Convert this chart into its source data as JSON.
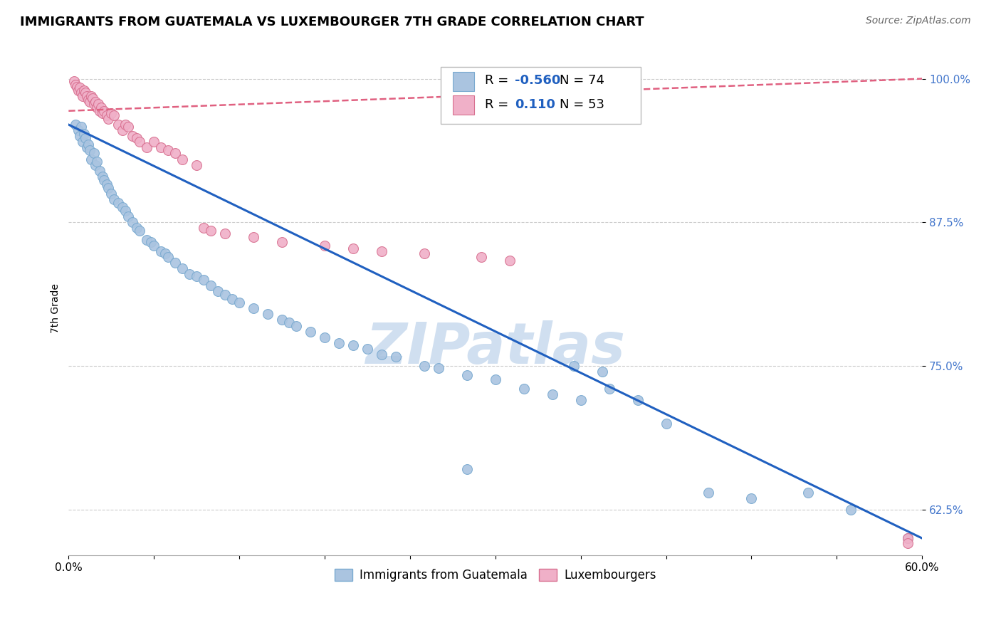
{
  "title": "IMMIGRANTS FROM GUATEMALA VS LUXEMBOURGER 7TH GRADE CORRELATION CHART",
  "source": "Source: ZipAtlas.com",
  "ylabel": "7th Grade",
  "xlim": [
    0.0,
    0.6
  ],
  "ylim": [
    0.585,
    1.015
  ],
  "yticks": [
    1.0,
    0.875,
    0.75,
    0.625
  ],
  "ytick_labels": [
    "100.0%",
    "87.5%",
    "75.0%",
    "62.5%"
  ],
  "xtick_positions": [
    0.0,
    0.06,
    0.12,
    0.18,
    0.24,
    0.3,
    0.36,
    0.42,
    0.48,
    0.54,
    0.6
  ],
  "xtick_labels": [
    "0.0%",
    "",
    "",
    "",
    "",
    "",
    "",
    "",
    "",
    "",
    "60.0%"
  ],
  "blue_R": -0.56,
  "blue_N": 74,
  "pink_R": 0.11,
  "pink_N": 53,
  "blue_color": "#aac4e0",
  "blue_edge": "#7aaad0",
  "pink_color": "#f0b0c8",
  "pink_edge": "#d87090",
  "blue_line_color": "#2060c0",
  "pink_line_color": "#e06080",
  "watermark": "ZIPatlas",
  "watermark_color": "#d0dff0",
  "blue_scatter_x": [
    0.005,
    0.007,
    0.008,
    0.009,
    0.01,
    0.011,
    0.012,
    0.013,
    0.014,
    0.015,
    0.016,
    0.018,
    0.019,
    0.02,
    0.022,
    0.024,
    0.025,
    0.027,
    0.028,
    0.03,
    0.032,
    0.035,
    0.038,
    0.04,
    0.042,
    0.045,
    0.048,
    0.05,
    0.055,
    0.058,
    0.06,
    0.065,
    0.068,
    0.07,
    0.075,
    0.08,
    0.085,
    0.09,
    0.095,
    0.1,
    0.105,
    0.11,
    0.115,
    0.12,
    0.13,
    0.14,
    0.15,
    0.155,
    0.16,
    0.17,
    0.18,
    0.19,
    0.2,
    0.21,
    0.22,
    0.23,
    0.25,
    0.26,
    0.28,
    0.3,
    0.32,
    0.34,
    0.355,
    0.36,
    0.375,
    0.38,
    0.4,
    0.42,
    0.45,
    0.48,
    0.52,
    0.55,
    0.59,
    0.28
  ],
  "blue_scatter_y": [
    0.96,
    0.955,
    0.95,
    0.958,
    0.945,
    0.952,
    0.948,
    0.94,
    0.943,
    0.938,
    0.93,
    0.935,
    0.925,
    0.928,
    0.92,
    0.915,
    0.912,
    0.908,
    0.905,
    0.9,
    0.895,
    0.892,
    0.888,
    0.885,
    0.88,
    0.875,
    0.87,
    0.868,
    0.86,
    0.858,
    0.855,
    0.85,
    0.848,
    0.845,
    0.84,
    0.835,
    0.83,
    0.828,
    0.825,
    0.82,
    0.815,
    0.812,
    0.808,
    0.805,
    0.8,
    0.795,
    0.79,
    0.788,
    0.785,
    0.78,
    0.775,
    0.77,
    0.768,
    0.765,
    0.76,
    0.758,
    0.75,
    0.748,
    0.742,
    0.738,
    0.73,
    0.725,
    0.75,
    0.72,
    0.745,
    0.73,
    0.72,
    0.7,
    0.64,
    0.635,
    0.64,
    0.625,
    0.6,
    0.66
  ],
  "blue_line_x": [
    0.0,
    0.6
  ],
  "blue_line_y": [
    0.96,
    0.6
  ],
  "pink_scatter_x": [
    0.004,
    0.005,
    0.006,
    0.007,
    0.008,
    0.009,
    0.01,
    0.011,
    0.012,
    0.013,
    0.014,
    0.015,
    0.016,
    0.017,
    0.018,
    0.019,
    0.02,
    0.021,
    0.022,
    0.023,
    0.024,
    0.025,
    0.027,
    0.028,
    0.03,
    0.032,
    0.035,
    0.038,
    0.04,
    0.042,
    0.045,
    0.048,
    0.05,
    0.055,
    0.06,
    0.065,
    0.07,
    0.075,
    0.08,
    0.09,
    0.095,
    0.1,
    0.11,
    0.13,
    0.15,
    0.18,
    0.2,
    0.22,
    0.25,
    0.29,
    0.31,
    0.59,
    0.59
  ],
  "pink_scatter_y": [
    0.998,
    0.995,
    0.993,
    0.99,
    0.992,
    0.988,
    0.985,
    0.99,
    0.988,
    0.985,
    0.982,
    0.98,
    0.985,
    0.983,
    0.978,
    0.98,
    0.975,
    0.978,
    0.972,
    0.975,
    0.97,
    0.972,
    0.968,
    0.965,
    0.97,
    0.968,
    0.96,
    0.955,
    0.96,
    0.958,
    0.95,
    0.948,
    0.945,
    0.94,
    0.945,
    0.94,
    0.938,
    0.935,
    0.93,
    0.925,
    0.87,
    0.868,
    0.865,
    0.862,
    0.858,
    0.855,
    0.852,
    0.85,
    0.848,
    0.845,
    0.842,
    0.6,
    0.596
  ],
  "pink_line_x": [
    0.0,
    0.6
  ],
  "pink_line_y": [
    0.972,
    1.0
  ]
}
